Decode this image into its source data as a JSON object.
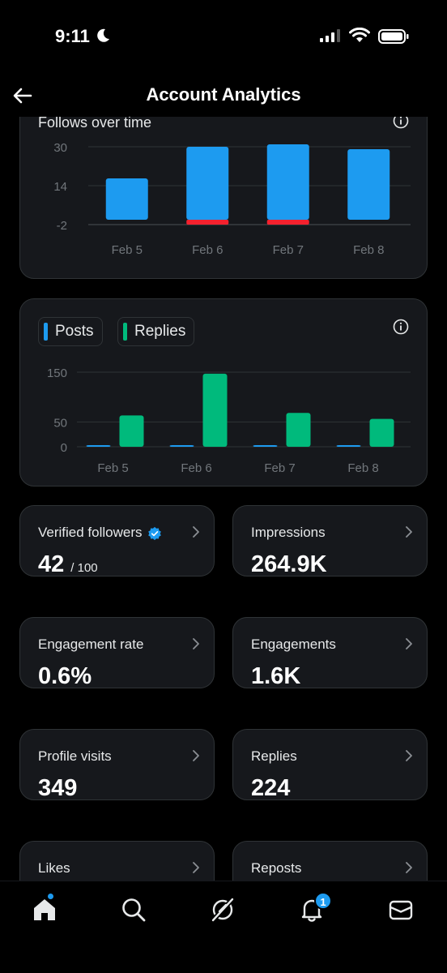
{
  "status_bar": {
    "time": "9:11"
  },
  "header": {
    "title": "Account Analytics"
  },
  "follows_chart": {
    "title": "Follows over time",
    "chart_data": {
      "type": "bar",
      "categories": [
        "Feb 5",
        "Feb 6",
        "Feb 7",
        "Feb 8"
      ],
      "series": [
        {
          "values": [
            17,
            30,
            31,
            29
          ],
          "color": "#1d9bf0"
        },
        {
          "values": [
            0,
            -2,
            -2,
            0
          ],
          "color": "#f4212e"
        }
      ],
      "ytick_labels": [
        "30",
        "14",
        "-2"
      ],
      "yticks": [
        30,
        14,
        -2
      ],
      "ylim": [
        -2,
        30
      ]
    }
  },
  "posts_chart": {
    "legend": [
      {
        "label": "Posts",
        "color": "#1d9bf0"
      },
      {
        "label": "Replies",
        "color": "#00ba7c"
      }
    ],
    "chart_data": {
      "type": "bar",
      "categories": [
        "Feb 5",
        "Feb 6",
        "Feb 7",
        "Feb 8"
      ],
      "series": [
        {
          "name": "Posts",
          "values": [
            2,
            2,
            1,
            1
          ],
          "color": "#1d9bf0"
        },
        {
          "name": "Replies",
          "values": [
            63,
            147,
            68,
            56
          ],
          "color": "#00ba7c"
        }
      ],
      "ytick_labels": [
        "150",
        "50",
        "0"
      ],
      "yticks": [
        150,
        50,
        0
      ],
      "ylim": [
        0,
        150
      ]
    }
  },
  "metrics": [
    {
      "label": "Verified followers",
      "value": "42",
      "sub": "/ 100"
    },
    {
      "label": "Impressions",
      "value": "264.9K"
    },
    {
      "label": "Engagement rate",
      "value": "0.6%"
    },
    {
      "label": "Engagements",
      "value": "1.6K"
    },
    {
      "label": "Profile visits",
      "value": "349"
    },
    {
      "label": "Replies",
      "value": "224"
    },
    {
      "label": "Likes"
    },
    {
      "label": "Reposts"
    }
  ],
  "nav": {
    "notifications_badge": "1"
  }
}
